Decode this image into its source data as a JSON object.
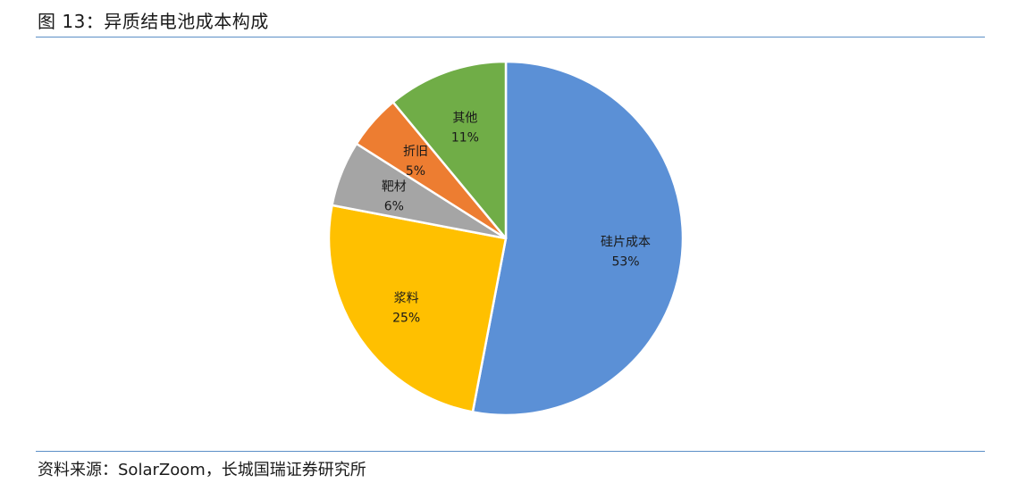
{
  "figure": {
    "title": "图 13：异质结电池成本构成",
    "source": "资料来源：SolarZoom，长城国瑞证券研究所"
  },
  "chart_data": {
    "type": "pie",
    "title": "",
    "start_angle_deg": 0,
    "direction": "clockwise",
    "legend": "none",
    "slices": [
      {
        "label": "硅片成本",
        "value": 53,
        "value_label": "53%",
        "color": "#5b90d6"
      },
      {
        "label": "浆料",
        "value": 25,
        "value_label": "25%",
        "color": "#ffc000"
      },
      {
        "label": "靶材",
        "value": 6,
        "value_label": "6%",
        "color": "#a5a5a5"
      },
      {
        "label": "折旧",
        "value": 5,
        "value_label": "5%",
        "color": "#ed7d31"
      },
      {
        "label": "其他",
        "value": 11,
        "value_label": "11%",
        "color": "#70ad47"
      }
    ]
  }
}
